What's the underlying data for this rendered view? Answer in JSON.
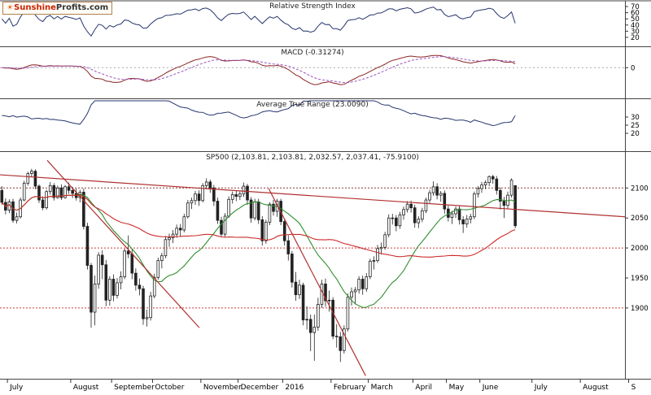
{
  "logo": {
    "sun_icon": "☀",
    "brand_red": "Sunshine",
    "brand_dark": "Profits.com"
  },
  "chart_data": {
    "type": "candlestick",
    "instrument": "SP500",
    "panels": {
      "rsi": {
        "title": "Relative Strength Index",
        "period": 14,
        "range": [
          8,
          78
        ],
        "ticks": [
          70,
          60,
          50,
          40,
          30,
          20
        ],
        "line_color": "#27356e"
      },
      "macd": {
        "title": "MACD (-0.31274)",
        "value": -0.31274,
        "params": [
          12,
          26,
          9
        ],
        "range": [
          -80,
          50
        ],
        "ticks": [
          0
        ],
        "macd_color": "#8b2424",
        "signal_color": "#9a55c0"
      },
      "atr": {
        "title": "Average True Range (23.0090)",
        "value": 23.009,
        "period": 14,
        "range": [
          10,
          40
        ],
        "ticks": [
          30,
          25,
          20
        ],
        "line_color": "#27356e"
      },
      "price": {
        "title": "SP500 (2,103.81, 2,103.81, 2,032.57, 2,037.41, -75.9100)",
        "ohlc_last": {
          "open": 2103.81,
          "high": 2103.81,
          "low": 2032.57,
          "close": 2037.41,
          "change": -75.91
        },
        "range": [
          1782,
          2160
        ],
        "ticks": [
          2100,
          2050,
          2000,
          1950,
          1900
        ],
        "candle_color": "#222222",
        "sma_fast": {
          "period": 20,
          "color": "#2f8f2f"
        },
        "sma_slow": {
          "period": 50,
          "color": "#cc2b2b"
        },
        "horizontal_lines": [
          {
            "price": 2100,
            "color": "#8b3a3a"
          },
          {
            "price": 2000,
            "color": "#d23b3b"
          },
          {
            "price": 1900,
            "color": "#d23b3b"
          }
        ],
        "trend_color": "#b03030",
        "trend_lines": [
          {
            "x1": 0,
            "p1": 2122,
            "x2": 1,
            "p2": 2052
          },
          {
            "x1": 0.0755,
            "p1": 2146,
            "x2": 0.319,
            "p2": 1867
          },
          {
            "x1": 0.43,
            "p1": 2099,
            "x2": 0.585,
            "p2": 1787
          }
        ]
      }
    },
    "x_axis": {
      "slots": 168,
      "months": [
        {
          "label": "July",
          "i": 2
        },
        {
          "label": "August",
          "i": 19
        },
        {
          "label": "September",
          "i": 30
        },
        {
          "label": "October",
          "i": 41
        },
        {
          "label": "November",
          "i": 54
        },
        {
          "label": "December",
          "i": 64
        },
        {
          "label": "2016",
          "i": 76
        },
        {
          "label": "February",
          "i": 89
        },
        {
          "label": "March",
          "i": 99
        },
        {
          "label": "April",
          "i": 111
        },
        {
          "label": "May",
          "i": 120
        },
        {
          "label": "June",
          "i": 129
        },
        {
          "label": "July",
          "i": 143
        },
        {
          "label": "August",
          "i": 156
        },
        {
          "label": "S",
          "i": 169
        }
      ]
    },
    "candles_ohlc": [
      [
        2096,
        2103,
        2072,
        2076
      ],
      [
        2076,
        2083,
        2056,
        2063
      ],
      [
        2063,
        2081,
        2058,
        2077
      ],
      [
        2077,
        2082,
        2042,
        2046
      ],
      [
        2046,
        2059,
        2041,
        2052
      ],
      [
        2052,
        2084,
        2049,
        2080
      ],
      [
        2080,
        2112,
        2078,
        2108
      ],
      [
        2108,
        2127,
        2104,
        2124
      ],
      [
        2124,
        2132,
        2119,
        2128
      ],
      [
        2128,
        2131,
        2098,
        2103
      ],
      [
        2103,
        2106,
        2075,
        2080
      ],
      [
        2080,
        2086,
        2063,
        2067
      ],
      [
        2067,
        2097,
        2064,
        2094
      ],
      [
        2094,
        2110,
        2089,
        2104
      ],
      [
        2104,
        2108,
        2079,
        2084
      ],
      [
        2084,
        2104,
        2082,
        2100
      ],
      [
        2100,
        2106,
        2080,
        2084
      ],
      [
        2084,
        2105,
        2082,
        2102
      ],
      [
        2102,
        2109,
        2090,
        2096
      ],
      [
        2096,
        2102,
        2083,
        2091
      ],
      [
        2091,
        2099,
        2079,
        2084
      ],
      [
        2084,
        2097,
        2076,
        2093
      ],
      [
        2093,
        2099,
        2031,
        2036
      ],
      [
        2036,
        2042,
        1964,
        1971
      ],
      [
        1971,
        1975,
        1867,
        1893
      ],
      [
        1893,
        1954,
        1871,
        1940
      ],
      [
        1940,
        1993,
        1932,
        1988
      ],
      [
        1988,
        1996,
        1948,
        1972
      ],
      [
        1972,
        1980,
        1903,
        1913
      ],
      [
        1913,
        1953,
        1904,
        1948
      ],
      [
        1948,
        1956,
        1911,
        1921
      ],
      [
        1921,
        1950,
        1916,
        1942
      ],
      [
        1942,
        1961,
        1931,
        1952
      ],
      [
        1952,
        1999,
        1948,
        1995
      ],
      [
        1995,
        2021,
        1983,
        1990
      ],
      [
        1990,
        1998,
        1948,
        1958
      ],
      [
        1958,
        1966,
        1929,
        1938
      ],
      [
        1938,
        1949,
        1921,
        1932
      ],
      [
        1932,
        1937,
        1872,
        1882
      ],
      [
        1882,
        1897,
        1869,
        1884
      ],
      [
        1884,
        1927,
        1879,
        1920
      ],
      [
        1920,
        1957,
        1916,
        1951
      ],
      [
        1951,
        1984,
        1947,
        1979
      ],
      [
        1979,
        1992,
        1966,
        1987
      ],
      [
        1987,
        2020,
        1983,
        2014
      ],
      [
        2014,
        2024,
        2002,
        2017
      ],
      [
        2017,
        2030,
        2008,
        2023
      ],
      [
        2023,
        2039,
        2017,
        2033
      ],
      [
        2033,
        2040,
        2019,
        2030
      ],
      [
        2030,
        2057,
        2026,
        2052
      ],
      [
        2052,
        2080,
        2049,
        2075
      ],
      [
        2075,
        2084,
        2065,
        2079
      ],
      [
        2079,
        2095,
        2072,
        2090
      ],
      [
        2090,
        2096,
        2070,
        2079
      ],
      [
        2079,
        2108,
        2076,
        2104
      ],
      [
        2104,
        2116,
        2098,
        2110
      ],
      [
        2110,
        2114,
        2092,
        2100
      ],
      [
        2100,
        2105,
        2070,
        2078
      ],
      [
        2078,
        2084,
        2040,
        2046
      ],
      [
        2046,
        2052,
        2019,
        2023
      ],
      [
        2023,
        2058,
        2019,
        2053
      ],
      [
        2053,
        2086,
        2050,
        2081
      ],
      [
        2081,
        2094,
        2074,
        2089
      ],
      [
        2089,
        2096,
        2078,
        2086
      ],
      [
        2086,
        2094,
        2080,
        2090
      ],
      [
        2090,
        2109,
        2085,
        2103
      ],
      [
        2103,
        2107,
        2072,
        2080
      ],
      [
        2080,
        2085,
        2042,
        2050
      ],
      [
        2050,
        2082,
        2046,
        2077
      ],
      [
        2077,
        2082,
        2040,
        2047
      ],
      [
        2047,
        2053,
        2004,
        2012
      ],
      [
        2012,
        2047,
        2007,
        2043
      ],
      [
        2043,
        2076,
        2038,
        2073
      ],
      [
        2073,
        2080,
        2054,
        2061
      ],
      [
        2061,
        2082,
        2052,
        2078
      ],
      [
        2078,
        2082,
        2038,
        2044
      ],
      [
        2044,
        2048,
        2004,
        2012
      ],
      [
        2012,
        2021,
        1979,
        1990
      ],
      [
        1990,
        1995,
        1934,
        1943
      ],
      [
        1943,
        1960,
        1912,
        1922
      ],
      [
        1922,
        1947,
        1915,
        1938
      ],
      [
        1938,
        1942,
        1871,
        1880
      ],
      [
        1880,
        1903,
        1864,
        1881
      ],
      [
        1881,
        1889,
        1828,
        1859
      ],
      [
        1859,
        1889,
        1812,
        1868
      ],
      [
        1868,
        1917,
        1862,
        1906
      ],
      [
        1906,
        1947,
        1900,
        1940
      ],
      [
        1940,
        1949,
        1902,
        1912
      ],
      [
        1912,
        1929,
        1894,
        1913
      ],
      [
        1913,
        1918,
        1848,
        1853
      ],
      [
        1853,
        1873,
        1834,
        1852
      ],
      [
        1852,
        1860,
        1810,
        1829
      ],
      [
        1829,
        1871,
        1824,
        1865
      ],
      [
        1865,
        1924,
        1861,
        1918
      ],
      [
        1918,
        1934,
        1904,
        1927
      ],
      [
        1927,
        1935,
        1906,
        1930
      ],
      [
        1930,
        1953,
        1924,
        1948
      ],
      [
        1948,
        1954,
        1922,
        1932
      ],
      [
        1932,
        1958,
        1927,
        1952
      ],
      [
        1952,
        1982,
        1948,
        1978
      ],
      [
        1978,
        1986,
        1964,
        1979
      ],
      [
        1979,
        2005,
        1975,
        1999
      ],
      [
        1999,
        2009,
        1989,
        2001
      ],
      [
        2001,
        2027,
        1997,
        2022
      ],
      [
        2022,
        2056,
        2018,
        2050
      ],
      [
        2050,
        2057,
        2039,
        2050
      ],
      [
        2050,
        2055,
        2028,
        2037
      ],
      [
        2037,
        2060,
        2032,
        2055
      ],
      [
        2055,
        2069,
        2047,
        2064
      ],
      [
        2064,
        2078,
        2059,
        2073
      ],
      [
        2073,
        2079,
        2059,
        2067
      ],
      [
        2067,
        2072,
        2034,
        2042
      ],
      [
        2042,
        2053,
        2033,
        2048
      ],
      [
        2048,
        2067,
        2043,
        2062
      ],
      [
        2062,
        2084,
        2058,
        2080
      ],
      [
        2080,
        2097,
        2075,
        2092
      ],
      [
        2092,
        2111,
        2087,
        2102
      ],
      [
        2102,
        2108,
        2081,
        2088
      ],
      [
        2088,
        2095,
        2077,
        2091
      ],
      [
        2091,
        2096,
        2057,
        2065
      ],
      [
        2065,
        2071,
        2044,
        2051
      ],
      [
        2051,
        2062,
        2040,
        2057
      ],
      [
        2057,
        2069,
        2050,
        2065
      ],
      [
        2065,
        2070,
        2039,
        2047
      ],
      [
        2047,
        2053,
        2025,
        2040
      ],
      [
        2040,
        2055,
        2034,
        2048
      ],
      [
        2048,
        2057,
        2041,
        2052
      ],
      [
        2052,
        2094,
        2048,
        2090
      ],
      [
        2090,
        2103,
        2084,
        2099
      ],
      [
        2099,
        2110,
        2092,
        2105
      ],
      [
        2105,
        2113,
        2098,
        2109
      ],
      [
        2109,
        2121,
        2103,
        2119
      ],
      [
        2119,
        2122,
        2107,
        2115
      ],
      [
        2115,
        2120,
        2089,
        2096
      ],
      [
        2096,
        2101,
        2064,
        2078
      ],
      [
        2078,
        2085,
        2050,
        2071
      ],
      [
        2071,
        2094,
        2066,
        2088
      ],
      [
        2088,
        2116,
        2084,
        2113
      ],
      [
        2104,
        2104,
        2033,
        2037
      ]
    ]
  }
}
